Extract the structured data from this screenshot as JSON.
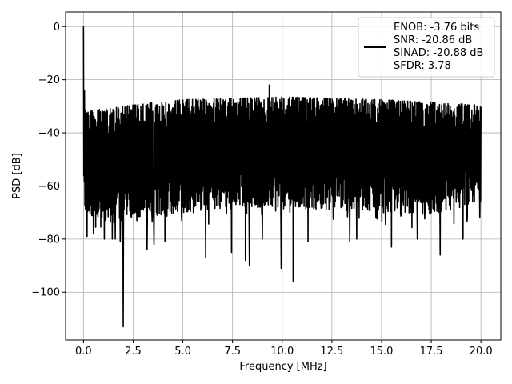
{
  "chart_data": {
    "type": "line",
    "title": "",
    "xlabel": "Frequency [MHz]",
    "ylabel": "PSD [dB]",
    "xlim": [
      -0.9,
      21.0
    ],
    "ylim": [
      -118,
      5.5
    ],
    "grid": true,
    "legend_position": "top-right",
    "x_ticks": [
      0.0,
      2.5,
      5.0,
      7.5,
      10.0,
      12.5,
      15.0,
      17.5,
      20.0
    ],
    "x_tick_labels": [
      "0.0",
      "2.5",
      "5.0",
      "7.5",
      "10.0",
      "12.5",
      "15.0",
      "17.5",
      "20.0"
    ],
    "y_ticks": [
      0,
      -20,
      -40,
      -60,
      -80,
      -100
    ],
    "y_tick_labels": [
      "0",
      "−20",
      "−40",
      "−60",
      "−80",
      "−100"
    ],
    "legend_lines": [
      "ENOB: -3.76 bits",
      "SNR: -20.86 dB",
      "SINAD: -20.88 dB",
      "SFDR: 3.78"
    ],
    "series": [
      {
        "color": "#000000",
        "note_envelope": "dense noise trace between lower and upper envelopes",
        "x_range": [
          0.0,
          20.0
        ],
        "upper_envelope": [
          [
            0.0,
            -31
          ],
          [
            0.5,
            -31.5
          ],
          [
            2.0,
            -30
          ],
          [
            3.0,
            -29
          ],
          [
            5.0,
            -27.5
          ],
          [
            7.5,
            -27
          ],
          [
            10.0,
            -26.5
          ],
          [
            12.5,
            -27
          ],
          [
            15.0,
            -27.5
          ],
          [
            17.5,
            -28.5
          ],
          [
            20.0,
            -29.5
          ]
        ],
        "lower_envelope": [
          [
            0.0,
            -70
          ],
          [
            1.5,
            -74
          ],
          [
            2.5,
            -72
          ],
          [
            5.0,
            -70
          ],
          [
            7.5,
            -68
          ],
          [
            10.0,
            -68
          ],
          [
            12.5,
            -69
          ],
          [
            15.0,
            -70
          ],
          [
            17.5,
            -71
          ],
          [
            20.0,
            -66
          ]
        ],
        "peaks": [
          {
            "x": 0.0,
            "y": 0
          },
          {
            "x": 0.05,
            "y": -24
          },
          {
            "x": 9.35,
            "y": -22
          }
        ],
        "dips": [
          {
            "x": 0.18,
            "y": -79
          },
          {
            "x": 0.5,
            "y": -78
          },
          {
            "x": 1.05,
            "y": -80
          },
          {
            "x": 1.45,
            "y": -80
          },
          {
            "x": 1.6,
            "y": -80
          },
          {
            "x": 1.85,
            "y": -81
          },
          {
            "x": 2.0,
            "y": -113
          },
          {
            "x": 3.2,
            "y": -84
          },
          {
            "x": 3.55,
            "y": -82
          },
          {
            "x": 4.1,
            "y": -81
          },
          {
            "x": 6.15,
            "y": -87
          },
          {
            "x": 7.45,
            "y": -85
          },
          {
            "x": 8.15,
            "y": -88
          },
          {
            "x": 8.35,
            "y": -90
          },
          {
            "x": 9.0,
            "y": -80
          },
          {
            "x": 9.95,
            "y": -91
          },
          {
            "x": 10.55,
            "y": -96
          },
          {
            "x": 11.3,
            "y": -81
          },
          {
            "x": 13.4,
            "y": -81
          },
          {
            "x": 13.75,
            "y": -80
          },
          {
            "x": 15.5,
            "y": -83
          },
          {
            "x": 16.8,
            "y": -80
          },
          {
            "x": 17.95,
            "y": -86
          },
          {
            "x": 19.1,
            "y": -80
          }
        ]
      }
    ]
  }
}
